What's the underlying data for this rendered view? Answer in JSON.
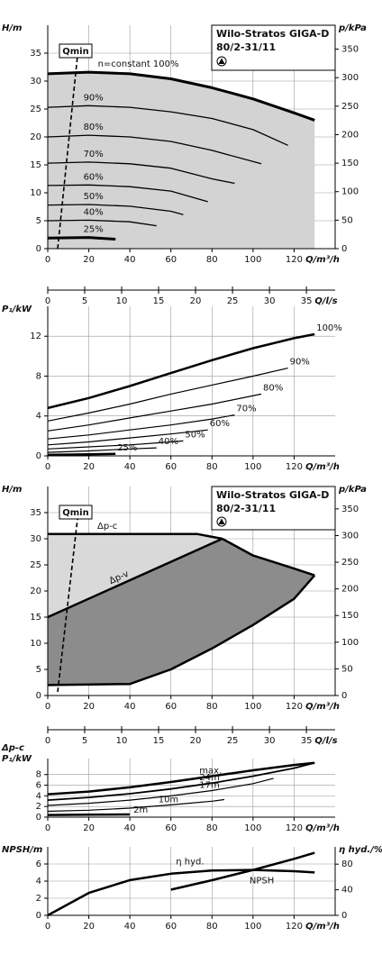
{
  "chart_data": [
    {
      "type": "line",
      "ylabel": "H/m",
      "y2label": "p/kPa",
      "xlabel": "Q/m³/h",
      "x2label": "Q/l/s",
      "title": [
        "Wilo-Stratos GIGA-D",
        "80/2-31/11"
      ],
      "annotation": "Qmin",
      "xlim": [
        0,
        140
      ],
      "xticks": [
        0,
        20,
        40,
        60,
        80,
        100,
        120
      ],
      "ylim": [
        0,
        40
      ],
      "yticks": [
        0,
        5,
        10,
        15,
        20,
        25,
        30,
        35
      ],
      "y2lim": [
        0,
        392
      ],
      "y2ticks": [
        0,
        50,
        100,
        150,
        200,
        250,
        300,
        350
      ],
      "x2lim": [
        0,
        38.89
      ],
      "x2ticks": [
        0,
        5,
        10,
        15,
        20,
        25,
        30,
        35
      ],
      "grid": true,
      "series": [
        {
          "name": "n=constant 100%",
          "color": "#000000",
          "line_width": 3,
          "fill": "#d3d3d3",
          "x": [
            0,
            20,
            40,
            60,
            80,
            100,
            120,
            130
          ],
          "values": [
            31.3,
            31.6,
            31.3,
            30.4,
            28.8,
            26.8,
            24.3,
            23
          ]
        },
        {
          "name": "90%",
          "color": "#000000",
          "line_width": 1.3,
          "x": [
            0,
            20,
            40,
            60,
            80,
            100,
            117
          ],
          "values": [
            25.3,
            25.6,
            25.3,
            24.5,
            23.3,
            21.3,
            18.5
          ]
        },
        {
          "name": "80%",
          "color": "#000000",
          "line_width": 1.3,
          "x": [
            0,
            20,
            40,
            60,
            80,
            104
          ],
          "values": [
            20,
            20.3,
            20,
            19.2,
            17.6,
            15.2
          ]
        },
        {
          "name": "70%",
          "color": "#000000",
          "line_width": 1.3,
          "x": [
            0,
            20,
            40,
            60,
            80,
            91
          ],
          "values": [
            15.3,
            15.5,
            15.2,
            14.4,
            12.5,
            11.7
          ]
        },
        {
          "name": "60%",
          "color": "#000000",
          "line_width": 1.3,
          "x": [
            0,
            20,
            40,
            60,
            78
          ],
          "values": [
            11.3,
            11.4,
            11.1,
            10.3,
            8.4
          ]
        },
        {
          "name": "50%",
          "color": "#000000",
          "line_width": 1.3,
          "x": [
            0,
            20,
            40,
            60,
            66
          ],
          "values": [
            7.8,
            7.9,
            7.6,
            6.7,
            6.1
          ]
        },
        {
          "name": "40%",
          "color": "#000000",
          "line_width": 1.3,
          "x": [
            0,
            20,
            40,
            53
          ],
          "values": [
            5,
            5.1,
            4.8,
            4.1
          ]
        },
        {
          "name": "25%",
          "color": "#000000",
          "line_width": 3,
          "x": [
            0,
            20,
            33
          ],
          "values": [
            1.9,
            2,
            1.7
          ]
        }
      ]
    },
    {
      "type": "line",
      "ylabel": "P₁/kW",
      "xlabel": "Q/m³/h",
      "xlim": [
        0,
        140
      ],
      "xticks": [
        0,
        20,
        40,
        60,
        80,
        100,
        120
      ],
      "ylim": [
        0,
        15
      ],
      "yticks": [
        0,
        4,
        8,
        12
      ],
      "grid": true,
      "series": [
        {
          "name": "100%",
          "color": "#000000",
          "line_width": 2.5,
          "x": [
            0,
            20,
            40,
            60,
            80,
            100,
            120,
            130
          ],
          "values": [
            4.8,
            5.8,
            7,
            8.3,
            9.6,
            10.8,
            11.8,
            12.2
          ]
        },
        {
          "name": "90%",
          "color": "#000000",
          "line_width": 1.2,
          "x": [
            0,
            20,
            40,
            60,
            80,
            100,
            117
          ],
          "values": [
            3.5,
            4.3,
            5.2,
            6.2,
            7.1,
            8,
            8.8
          ]
        },
        {
          "name": "80%",
          "color": "#000000",
          "line_width": 1.2,
          "x": [
            0,
            20,
            40,
            60,
            80,
            104
          ],
          "values": [
            2.5,
            3.1,
            3.8,
            4.5,
            5.2,
            6.2
          ]
        },
        {
          "name": "70%",
          "color": "#000000",
          "line_width": 1.2,
          "x": [
            0,
            20,
            40,
            60,
            80,
            91
          ],
          "values": [
            1.7,
            2.1,
            2.6,
            3.1,
            3.7,
            4.1
          ]
        },
        {
          "name": "60%",
          "color": "#000000",
          "line_width": 1.2,
          "x": [
            0,
            20,
            40,
            60,
            78
          ],
          "values": [
            1.1,
            1.4,
            1.8,
            2.2,
            2.6
          ]
        },
        {
          "name": "50%",
          "color": "#000000",
          "line_width": 1.2,
          "x": [
            0,
            20,
            40,
            60,
            66
          ],
          "values": [
            0.7,
            0.9,
            1.1,
            1.4,
            1.5
          ]
        },
        {
          "name": "40%",
          "color": "#000000",
          "line_width": 1.2,
          "x": [
            0,
            20,
            40,
            53
          ],
          "values": [
            0.35,
            0.5,
            0.7,
            0.8
          ]
        },
        {
          "name": "25%",
          "color": "#000000",
          "line_width": 2.5,
          "x": [
            0,
            20,
            33
          ],
          "values": [
            0.1,
            0.15,
            0.2
          ]
        }
      ]
    },
    {
      "type": "region",
      "ylabel": "H/m",
      "y2label": "p/kPa",
      "xlabel": "Q/m³/h",
      "x2label": "Q/l/s",
      "title": [
        "Wilo-Stratos GIGA-D",
        "80/2-31/11"
      ],
      "annotation": "Qmin",
      "xlim": [
        0,
        140
      ],
      "xticks": [
        0,
        20,
        40,
        60,
        80,
        100,
        120
      ],
      "ylim": [
        0,
        40
      ],
      "yticks": [
        0,
        5,
        10,
        15,
        20,
        25,
        30,
        35
      ],
      "y2lim": [
        0,
        392
      ],
      "y2ticks": [
        0,
        50,
        100,
        150,
        200,
        250,
        300,
        350
      ],
      "x2lim": [
        0,
        38.89
      ],
      "x2ticks": [
        0,
        5,
        10,
        15,
        20,
        25,
        30,
        35
      ],
      "grid": true,
      "series": [
        {
          "name": "Δp-c",
          "color": "#000000",
          "line_width": 2.5,
          "fill": "#d9d9d9",
          "x": [
            0,
            73,
            85
          ],
          "values": [
            30.9,
            30.9,
            30
          ]
        },
        {
          "name": "Δp-v",
          "color": "#000000",
          "line_width": 2.5,
          "fill": "#8c8c8c",
          "x": [
            0,
            85
          ],
          "values": [
            15,
            30
          ]
        },
        {
          "color": "#000000",
          "line_width": 2.5,
          "x": [
            85,
            100,
            120,
            130
          ],
          "values": [
            30,
            26.8,
            24.3,
            23
          ]
        },
        {
          "color": "#000000",
          "line_width": 2.5,
          "x": [
            0,
            40,
            60,
            80,
            100,
            120,
            130
          ],
          "values": [
            2,
            2.2,
            5,
            9,
            13.5,
            18.5,
            23
          ]
        }
      ]
    },
    {
      "type": "line",
      "ylabel": [
        "Δp-c",
        "P₁/kW"
      ],
      "xlabel": "Q/m³/h",
      "xlim": [
        0,
        140
      ],
      "xticks": [
        0,
        20,
        40,
        60,
        80,
        100,
        120
      ],
      "ylim": [
        0,
        11
      ],
      "yticks": [
        0,
        2,
        4,
        6,
        8
      ],
      "grid": true,
      "series": [
        {
          "name": "max.",
          "color": "#000000",
          "line_width": 2.5,
          "x": [
            0,
            20,
            40,
            60,
            80,
            100,
            120,
            130
          ],
          "values": [
            4.3,
            4.8,
            5.6,
            6.6,
            7.7,
            8.8,
            9.8,
            10.2
          ]
        },
        {
          "name": "24m",
          "color": "#000000",
          "line_width": 1.8,
          "x": [
            0,
            20,
            40,
            60,
            80,
            100,
            120,
            130
          ],
          "values": [
            3.2,
            3.7,
            4.4,
            5.3,
            6.4,
            7.7,
            9.2,
            10.2
          ]
        },
        {
          "name": "17m",
          "color": "#000000",
          "line_width": 1.2,
          "x": [
            0,
            20,
            40,
            60,
            80,
            100,
            110
          ],
          "values": [
            2.2,
            2.6,
            3.2,
            4,
            5,
            6.3,
            7.3
          ]
        },
        {
          "name": "10m",
          "color": "#000000",
          "line_width": 1.2,
          "x": [
            0,
            20,
            40,
            60,
            80,
            86
          ],
          "values": [
            1.1,
            1.3,
            1.7,
            2.3,
            3,
            3.3
          ]
        },
        {
          "name": "2m",
          "color": "#000000",
          "line_width": 2.5,
          "x": [
            0,
            20,
            40
          ],
          "values": [
            0.4,
            0.45,
            0.5
          ]
        }
      ]
    },
    {
      "type": "line",
      "ylabel": "NPSH/m",
      "y2label": "η hyd./%",
      "xlabel": "Q/m³/h",
      "xlim": [
        0,
        140
      ],
      "xticks": [
        0,
        20,
        40,
        60,
        80,
        100,
        120
      ],
      "ylim": [
        0,
        8
      ],
      "yticks": [
        0,
        2,
        4,
        6
      ],
      "y2lim": [
        0,
        107
      ],
      "y2ticks": [
        0,
        40,
        80
      ],
      "grid": true,
      "series": [
        {
          "name": "η hyd.",
          "color": "#000000",
          "line_width": 2.5,
          "axis": "y2",
          "x": [
            0,
            20,
            40,
            60,
            80,
            100,
            120,
            130
          ],
          "values": [
            0,
            35,
            55,
            65,
            70,
            71,
            69,
            67
          ]
        },
        {
          "name": "NPSH",
          "color": "#000000",
          "line_width": 2.5,
          "x": [
            60,
            80,
            100,
            120,
            130
          ],
          "values": [
            3,
            4.1,
            5.3,
            6.6,
            7.3
          ]
        }
      ]
    }
  ]
}
